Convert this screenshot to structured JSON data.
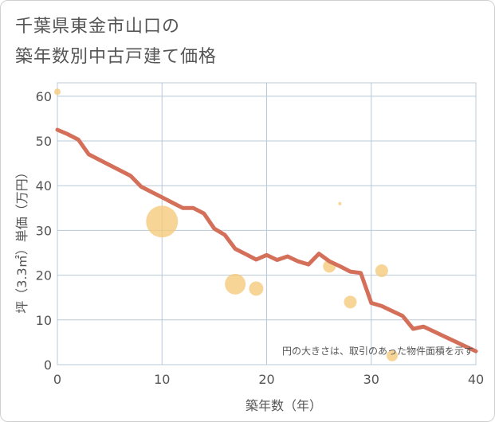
{
  "title_line1": "千葉県東金市山口の",
  "title_line2": "築年数別中古戸建て価格",
  "colors": {
    "line": "#d4705a",
    "bubble": "#f5c97a",
    "grid": "#b8c8d8",
    "plot_bg": "#ffffff"
  },
  "chart_data": {
    "type": "scatter",
    "title": "千葉県東金市山口の築年数別中古戸建て価格",
    "xlabel": "築年数（年）",
    "ylabel": "坪（3.3㎡）単価（万円）",
    "xlim": [
      0,
      40
    ],
    "ylim": [
      0,
      63
    ],
    "xticks": [
      0,
      10,
      20,
      30,
      40
    ],
    "yticks": [
      0,
      10,
      20,
      30,
      40,
      50,
      60
    ],
    "note": "円の大きさは、取引のあった物件面積を示す",
    "trend_line": {
      "x": [
        0,
        1,
        2,
        3,
        4,
        5,
        6,
        7,
        8,
        9,
        10,
        11,
        12,
        13,
        14,
        15,
        16,
        17,
        18,
        19,
        20,
        21,
        22,
        23,
        24,
        25,
        26,
        27,
        28,
        29,
        30,
        31,
        32,
        33,
        34,
        35,
        36,
        37,
        38,
        39,
        40
      ],
      "y": [
        52.5,
        51.5,
        50.3,
        47.0,
        45.8,
        44.6,
        43.4,
        42.2,
        39.8,
        38.6,
        37.4,
        36.2,
        35.0,
        35.0,
        33.8,
        30.4,
        29.0,
        25.9,
        24.7,
        23.5,
        24.5,
        23.4,
        24.2,
        23.1,
        22.4,
        24.8,
        23.1,
        22.0,
        20.8,
        20.5,
        13.8,
        13.1,
        12.0,
        10.9,
        8.0,
        8.5,
        7.4,
        6.3,
        5.2,
        4.1,
        3.0
      ]
    },
    "bubbles": [
      {
        "x": 0,
        "y": 61,
        "size": 4
      },
      {
        "x": 10,
        "y": 32,
        "size": 20
      },
      {
        "x": 17,
        "y": 18,
        "size": 13
      },
      {
        "x": 19,
        "y": 17,
        "size": 9
      },
      {
        "x": 26,
        "y": 22,
        "size": 8
      },
      {
        "x": 27,
        "y": 36,
        "size": 2
      },
      {
        "x": 28,
        "y": 14,
        "size": 8
      },
      {
        "x": 31,
        "y": 21,
        "size": 8
      },
      {
        "x": 32,
        "y": 2,
        "size": 7
      }
    ]
  }
}
